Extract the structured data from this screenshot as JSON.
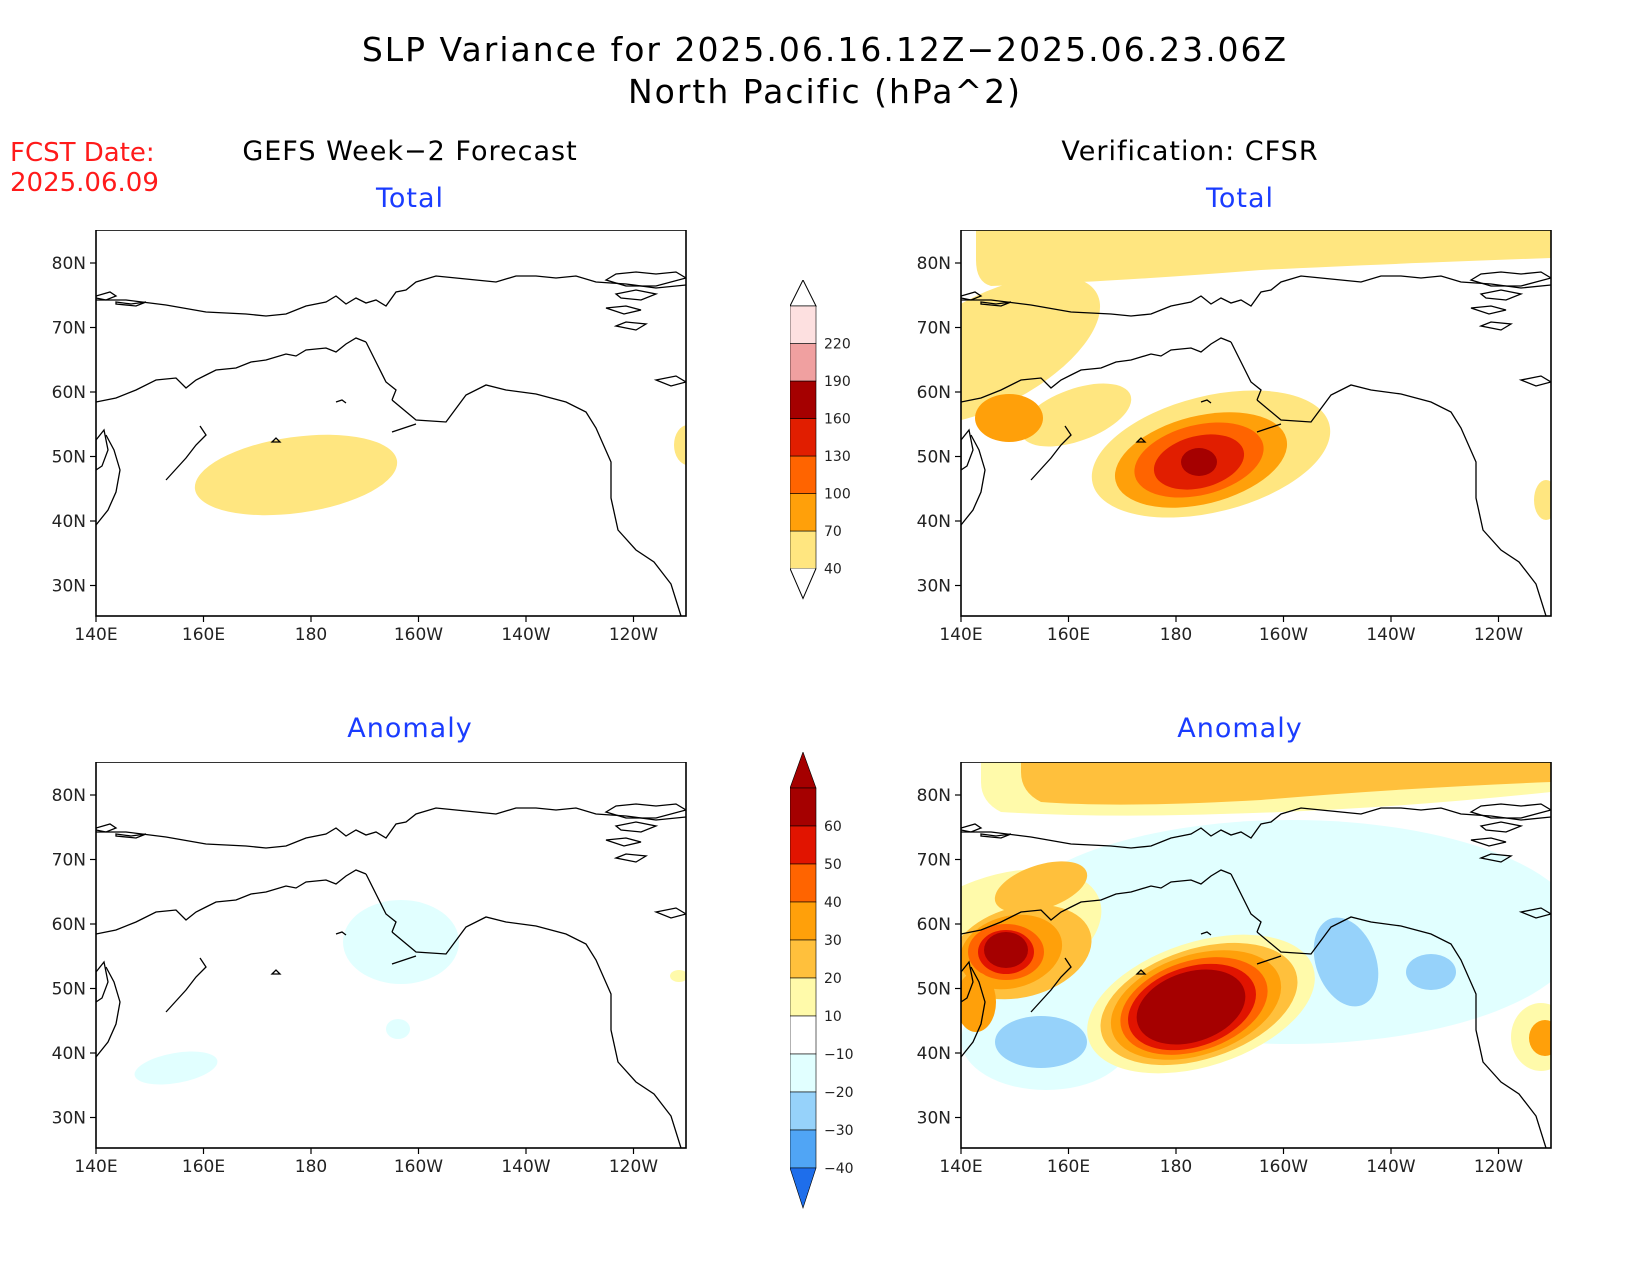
{
  "title": {
    "line1": "SLP Variance for 2025.06.16.12Z−2025.06.23.06Z",
    "line2": "North Pacific (hPa^2)"
  },
  "fcst": {
    "label": "FCST Date:",
    "date": "2025.06.09"
  },
  "columns": {
    "left": "GEFS Week−2 Forecast",
    "right": "Verification: CFSR"
  },
  "panels": [
    {
      "title": "Total"
    },
    {
      "title": "Total"
    },
    {
      "title": "Anomaly"
    },
    {
      "title": "Anomaly"
    }
  ],
  "axes": {
    "lat_labels": [
      "80N",
      "70N",
      "60N",
      "50N",
      "40N",
      "30N"
    ],
    "lon_labels": [
      "140E",
      "160E",
      "180",
      "160W",
      "140W",
      "120W"
    ]
  },
  "colorbars": {
    "total": {
      "levels": [
        "40",
        "70",
        "100",
        "130",
        "160",
        "190",
        "220"
      ],
      "colors": [
        "#ffe680",
        "#ffa00a",
        "#ff6400",
        "#e11e00",
        "#a50000",
        "#f0a0a0",
        "#fde0e0"
      ]
    },
    "anomaly": {
      "levels": [
        "60",
        "50",
        "40",
        "30",
        "20",
        "10",
        "−10",
        "−20",
        "−30",
        "−40"
      ],
      "pos_colors": [
        "#a50000",
        "#e11400",
        "#ff6400",
        "#ffa00a",
        "#ffc03c",
        "#fffaaa"
      ],
      "neg_colors": [
        "#e1ffff",
        "#96d2fa",
        "#50a5f5",
        "#1e6eeb"
      ]
    }
  }
}
